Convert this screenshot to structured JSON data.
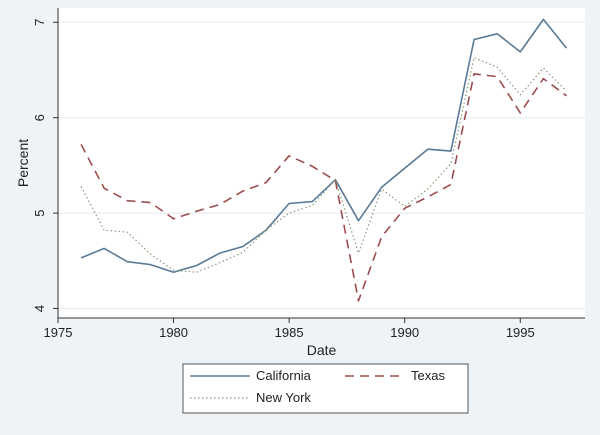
{
  "chart_data": {
    "type": "line",
    "title": "",
    "xlabel": "Date",
    "ylabel": "Percent",
    "xlim": [
      1975,
      1997.8
    ],
    "ylim": [
      3.9,
      7.15
    ],
    "x_ticks": [
      1975,
      1980,
      1985,
      1990,
      1995
    ],
    "y_ticks": [
      4,
      5,
      6,
      7
    ],
    "grid": "horizontal",
    "legend_position": "bottom",
    "x": [
      1976,
      1977,
      1978,
      1979,
      1980,
      1981,
      1982,
      1983,
      1984,
      1985,
      1986,
      1987,
      1988,
      1989,
      1990,
      1991,
      1992,
      1993,
      1994,
      1995,
      1996,
      1997
    ],
    "series": [
      {
        "name": "California",
        "style": "solid",
        "color": "#5a7a96",
        "values": [
          4.53,
          4.63,
          4.49,
          4.46,
          4.38,
          4.45,
          4.58,
          4.65,
          4.82,
          5.1,
          5.12,
          5.35,
          4.92,
          5.27,
          5.47,
          5.67,
          5.65,
          6.82,
          6.88,
          6.69,
          7.03,
          6.73
        ]
      },
      {
        "name": "Texas",
        "style": "dashed",
        "color": "#9b4d4d",
        "values": [
          5.72,
          5.26,
          5.13,
          5.11,
          4.94,
          5.02,
          5.09,
          5.23,
          5.32,
          5.6,
          5.49,
          5.34,
          4.08,
          4.75,
          5.05,
          5.17,
          5.3,
          6.46,
          6.43,
          6.05,
          6.41,
          6.23
        ]
      },
      {
        "name": "New York",
        "style": "dotted",
        "color": "#8a9a7a",
        "values": [
          5.28,
          4.82,
          4.8,
          4.57,
          4.4,
          4.38,
          4.48,
          4.59,
          4.82,
          5.0,
          5.08,
          5.35,
          4.58,
          5.25,
          5.07,
          5.25,
          5.52,
          6.63,
          6.53,
          6.24,
          6.52,
          6.28
        ]
      }
    ]
  }
}
